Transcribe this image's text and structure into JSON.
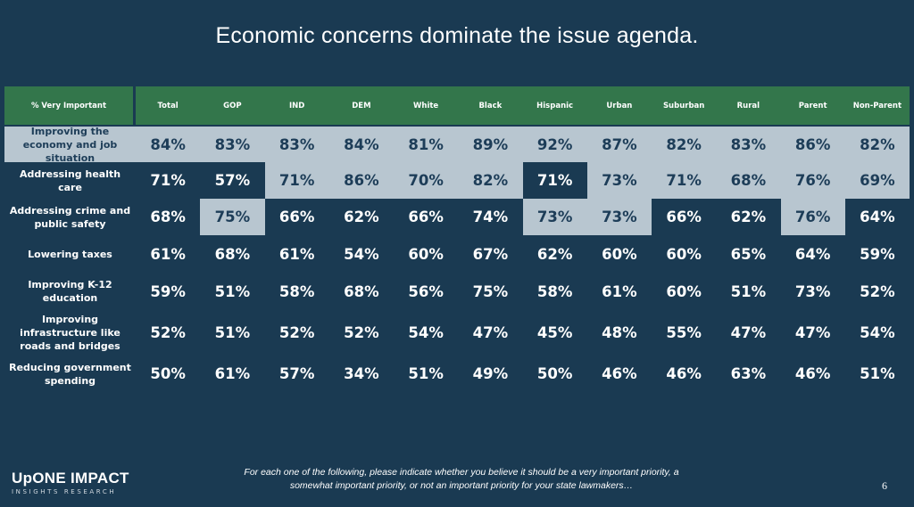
{
  "title": "Economic concerns dominate the issue agenda.",
  "table": {
    "corner_label": "% Very Important",
    "columns": [
      "Total",
      "GOP",
      "IND",
      "DEM",
      "White",
      "Black",
      "Hispanic",
      "Urban",
      "Suburban",
      "Rural",
      "Parent",
      "Non-Parent"
    ],
    "colors": {
      "header": "#33764b",
      "highlight": "#b8c6d0",
      "background": "#1a3a52",
      "highlight_text": "#1d3d58"
    },
    "rows": [
      {
        "label": "Improving the economy and job situation",
        "label_highlighted": true,
        "values": [
          "84%",
          "83%",
          "83%",
          "84%",
          "81%",
          "89%",
          "92%",
          "87%",
          "82%",
          "83%",
          "86%",
          "82%"
        ],
        "highlighted": [
          true,
          true,
          true,
          true,
          true,
          true,
          true,
          true,
          true,
          true,
          true,
          true
        ]
      },
      {
        "label": "Addressing health care",
        "label_highlighted": false,
        "values": [
          "71%",
          "57%",
          "71%",
          "86%",
          "70%",
          "82%",
          "71%",
          "73%",
          "71%",
          "68%",
          "76%",
          "69%"
        ],
        "highlighted": [
          false,
          false,
          true,
          true,
          true,
          true,
          false,
          true,
          true,
          true,
          true,
          true
        ]
      },
      {
        "label": "Addressing crime and public safety",
        "label_highlighted": false,
        "values": [
          "68%",
          "75%",
          "66%",
          "62%",
          "66%",
          "74%",
          "73%",
          "73%",
          "66%",
          "62%",
          "76%",
          "64%"
        ],
        "highlighted": [
          false,
          true,
          false,
          false,
          false,
          false,
          true,
          true,
          false,
          false,
          true,
          false
        ]
      },
      {
        "label": "Lowering taxes",
        "label_highlighted": false,
        "values": [
          "61%",
          "68%",
          "61%",
          "54%",
          "60%",
          "67%",
          "62%",
          "60%",
          "60%",
          "65%",
          "64%",
          "59%"
        ],
        "highlighted": [
          false,
          false,
          false,
          false,
          false,
          false,
          false,
          false,
          false,
          false,
          false,
          false
        ]
      },
      {
        "label": "Improving K-12 education",
        "label_highlighted": false,
        "values": [
          "59%",
          "51%",
          "58%",
          "68%",
          "56%",
          "75%",
          "58%",
          "61%",
          "60%",
          "51%",
          "73%",
          "52%"
        ],
        "highlighted": [
          false,
          false,
          false,
          false,
          false,
          false,
          false,
          false,
          false,
          false,
          false,
          false
        ]
      },
      {
        "label": "Improving infrastructure like roads and bridges",
        "label_highlighted": false,
        "values": [
          "52%",
          "51%",
          "52%",
          "52%",
          "54%",
          "47%",
          "45%",
          "48%",
          "55%",
          "47%",
          "47%",
          "54%"
        ],
        "highlighted": [
          false,
          false,
          false,
          false,
          false,
          false,
          false,
          false,
          false,
          false,
          false,
          false
        ]
      },
      {
        "label": "Reducing government spending",
        "label_highlighted": false,
        "values": [
          "50%",
          "61%",
          "57%",
          "34%",
          "51%",
          "49%",
          "50%",
          "46%",
          "46%",
          "63%",
          "46%",
          "51%"
        ],
        "highlighted": [
          false,
          false,
          false,
          false,
          false,
          false,
          false,
          false,
          false,
          false,
          false,
          false
        ]
      }
    ]
  },
  "logo": {
    "line1": "UpONE IMPACT",
    "line2": "INSIGHTS RESEARCH"
  },
  "footnote": "For each one of the following, please indicate whether you believe it should be a very important priority, a somewhat important priority, or not an important priority for your state lawmakers…",
  "page_number": "6"
}
